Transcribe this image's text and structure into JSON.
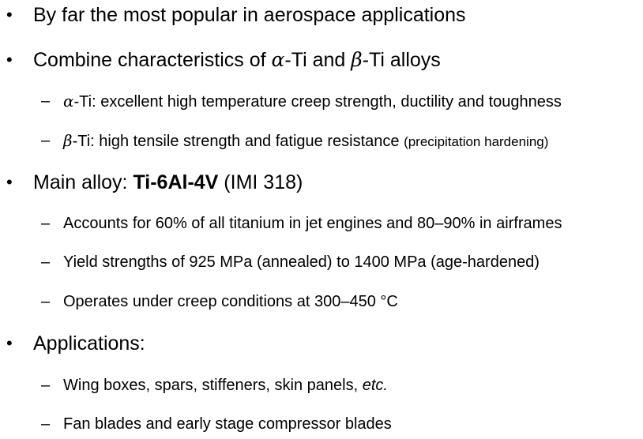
{
  "bullets": {
    "b1": {
      "marker": "•",
      "text": "By far the most popular in aerospace applications"
    },
    "b2": {
      "marker": "•",
      "pre": "Combine characteristics of ",
      "alpha": "α",
      "mid": "-Ti and ",
      "beta": "β",
      "post": "-Ti alloys",
      "sub1": {
        "marker": "–",
        "greek": "α",
        "text": "-Ti: excellent high temperature creep strength, ductility and toughness"
      },
      "sub2": {
        "marker": "–",
        "greek": "β",
        "text": "-Ti: high tensile strength and fatigue resistance ",
        "note": "(precipitation hardening)"
      }
    },
    "b3": {
      "marker": "•",
      "pre": "Main alloy: ",
      "alloy": "Ti-6Al-4V",
      "post": " (IMI 318)",
      "sub1": {
        "marker": "–",
        "text": "Accounts for 60% of all titanium in jet engines and 80–90% in airframes"
      },
      "sub2": {
        "marker": "–",
        "text": "Yield strengths of 925 MPa (annealed) to 1400 MPa (age-hardened)"
      },
      "sub3": {
        "marker": "–",
        "text": "Operates under creep conditions at 300–450 °C"
      }
    },
    "b4": {
      "marker": "•",
      "text": "Applications:",
      "sub1": {
        "marker": "–",
        "text": "Wing boxes, spars, stiffeners, skin panels, ",
        "etc": "etc."
      },
      "sub2": {
        "marker": "–",
        "text": "Fan blades and early stage compressor blades"
      }
    }
  }
}
